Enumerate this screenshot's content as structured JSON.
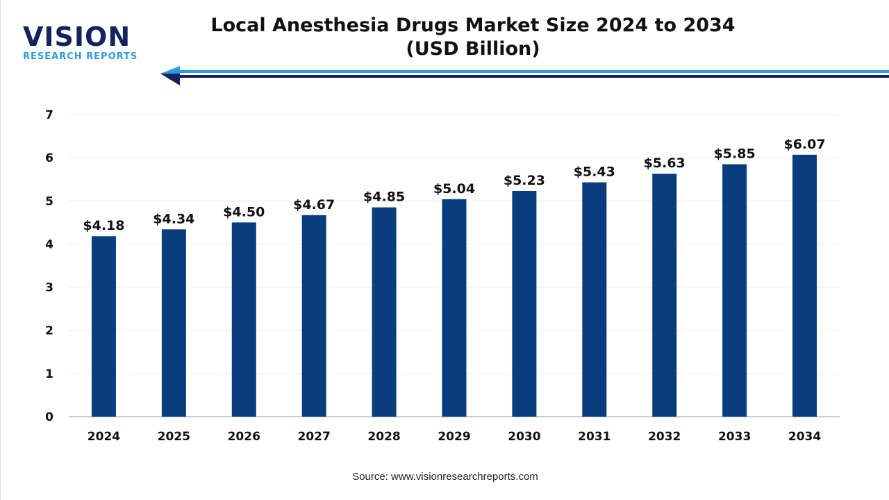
{
  "logo": {
    "brand": "VISION",
    "sub": "RESEARCH REPORTS"
  },
  "title_line1": "Local Anesthesia Drugs Market Size 2024 to 2034",
  "title_line2": "(USD Billion)",
  "source": "Source: www.visionresearchreports.com",
  "colors": {
    "bar": "#0a3d7e",
    "arrow_light": "#2d9be0",
    "arrow_dark": "#14235e"
  },
  "chart_data": {
    "type": "bar",
    "title": "Local Anesthesia Drugs Market Size 2024 to 2034 (USD Billion)",
    "categories": [
      "2024",
      "2025",
      "2026",
      "2027",
      "2028",
      "2029",
      "2030",
      "2031",
      "2032",
      "2033",
      "2034"
    ],
    "values": [
      4.18,
      4.34,
      4.5,
      4.67,
      4.85,
      5.04,
      5.23,
      5.43,
      5.63,
      5.85,
      6.07
    ],
    "labels": [
      "$4.18",
      "$4.34",
      "$4.50",
      "$4.67",
      "$4.85",
      "$5.04",
      "$5.23",
      "$5.43",
      "$5.63",
      "$5.85",
      "$6.07"
    ],
    "yticks": [
      "0",
      "1",
      "2",
      "3",
      "4",
      "5",
      "6",
      "7"
    ],
    "ylim": [
      0,
      7
    ],
    "grid": true,
    "legend": "none"
  }
}
